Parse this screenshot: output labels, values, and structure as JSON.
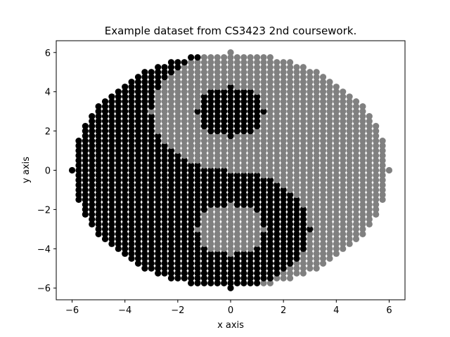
{
  "chart_data": {
    "type": "scatter",
    "title": "Example dataset from CS3423 2nd coursework.",
    "xlabel": "x axis",
    "ylabel": "y axis",
    "xlim": [
      -6.6,
      6.6
    ],
    "ylim": [
      -6.6,
      6.6
    ],
    "xticks": [
      -6,
      -4,
      -2,
      0,
      2,
      4,
      6
    ],
    "yticks": [
      -6,
      -4,
      -2,
      0,
      2,
      4,
      6
    ],
    "xtick_labels": [
      "−6",
      "−4",
      "−2",
      "0",
      "2",
      "4",
      "6"
    ],
    "ytick_labels": [
      "−6",
      "−4",
      "−2",
      "0",
      "2",
      "4",
      "6"
    ],
    "grid": false,
    "legend": "none",
    "point_spacing": 0.25,
    "ellipse_radii": {
      "x": 6.0,
      "y": 6.0
    },
    "series": [
      {
        "color": "#000000",
        "description_rule": "yin-yang dark half: left half of disc, lower-middle lobe, plus small dot in upper lobe, minus small dot in lower lobe",
        "values_note": "points generated on a 0.25 grid inside the disc"
      },
      {
        "color": "#808080",
        "description_rule": "yin-yang light half",
        "values_note": "points generated on a 0.25 grid inside the disc"
      }
    ],
    "shape": {
      "outer_radius": 6,
      "lobe_radius": 3,
      "dot_radius": 1.25,
      "upper_lobe_center": [
        0,
        3
      ],
      "lower_lobe_center": [
        0,
        -3
      ]
    }
  }
}
